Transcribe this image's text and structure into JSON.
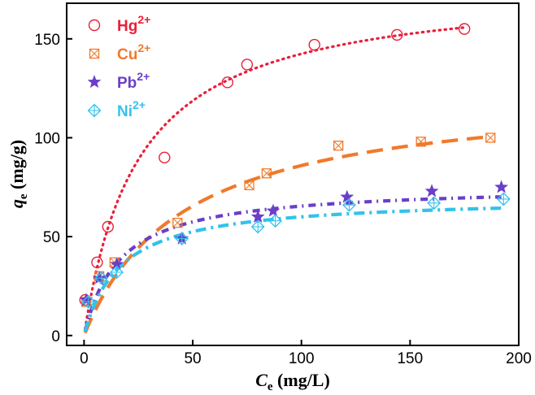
{
  "chart_data": {
    "type": "scatter",
    "xlabel": {
      "main": "C",
      "sub": "e",
      "unit": " (mg/L)"
    },
    "ylabel": {
      "main": "q",
      "sub": "e",
      "unit": " (mg/g)"
    },
    "xlim": [
      -8,
      200
    ],
    "ylim": [
      -5,
      168
    ],
    "xticks": [
      0,
      50,
      100,
      150,
      200
    ],
    "yticks": [
      0,
      50,
      100,
      150
    ],
    "grid": false,
    "legend_position": "top-left",
    "series": [
      {
        "name": "Hg",
        "sup": "2+",
        "color": "#e8203a",
        "marker": "circle",
        "fit": "dotted",
        "x": [
          0.5,
          6,
          11,
          37,
          66,
          75,
          106,
          144,
          175
        ],
        "y": [
          18,
          37,
          55,
          90,
          128,
          137,
          147,
          152,
          155
        ],
        "fit_params": {
          "qmax": 178,
          "K": 0.04
        }
      },
      {
        "name": "Cu",
        "sup": "2+",
        "color": "#f07a2b",
        "marker": "boxx",
        "fit": "dashed",
        "x": [
          1,
          7,
          14,
          43,
          76,
          84,
          117,
          155,
          187
        ],
        "y": [
          17,
          30,
          37,
          57,
          76,
          82,
          96,
          98,
          100
        ],
        "fit_params": {
          "qmax": 125,
          "K": 0.022
        }
      },
      {
        "name": "Pb",
        "sup": "2+",
        "color": "#6a3ec9",
        "marker": "star",
        "fit": "dash-dot",
        "x": [
          1,
          7,
          15,
          45,
          80,
          87,
          121,
          160,
          192
        ],
        "y": [
          18,
          29,
          36,
          49,
          60,
          63,
          70,
          73,
          75
        ],
        "fit_params": {
          "qmax": 76,
          "K": 0.062
        }
      },
      {
        "name": "Ni",
        "sup": "2+",
        "color": "#32c2ec",
        "marker": "diamondplus",
        "fit": "dash-dot-long",
        "x": [
          2,
          8,
          15,
          45,
          80,
          88,
          122,
          161,
          193
        ],
        "y": [
          17,
          29,
          32,
          49,
          55,
          58,
          66,
          67,
          69
        ],
        "fit_params": {
          "qmax": 70,
          "K": 0.06
        }
      }
    ]
  }
}
